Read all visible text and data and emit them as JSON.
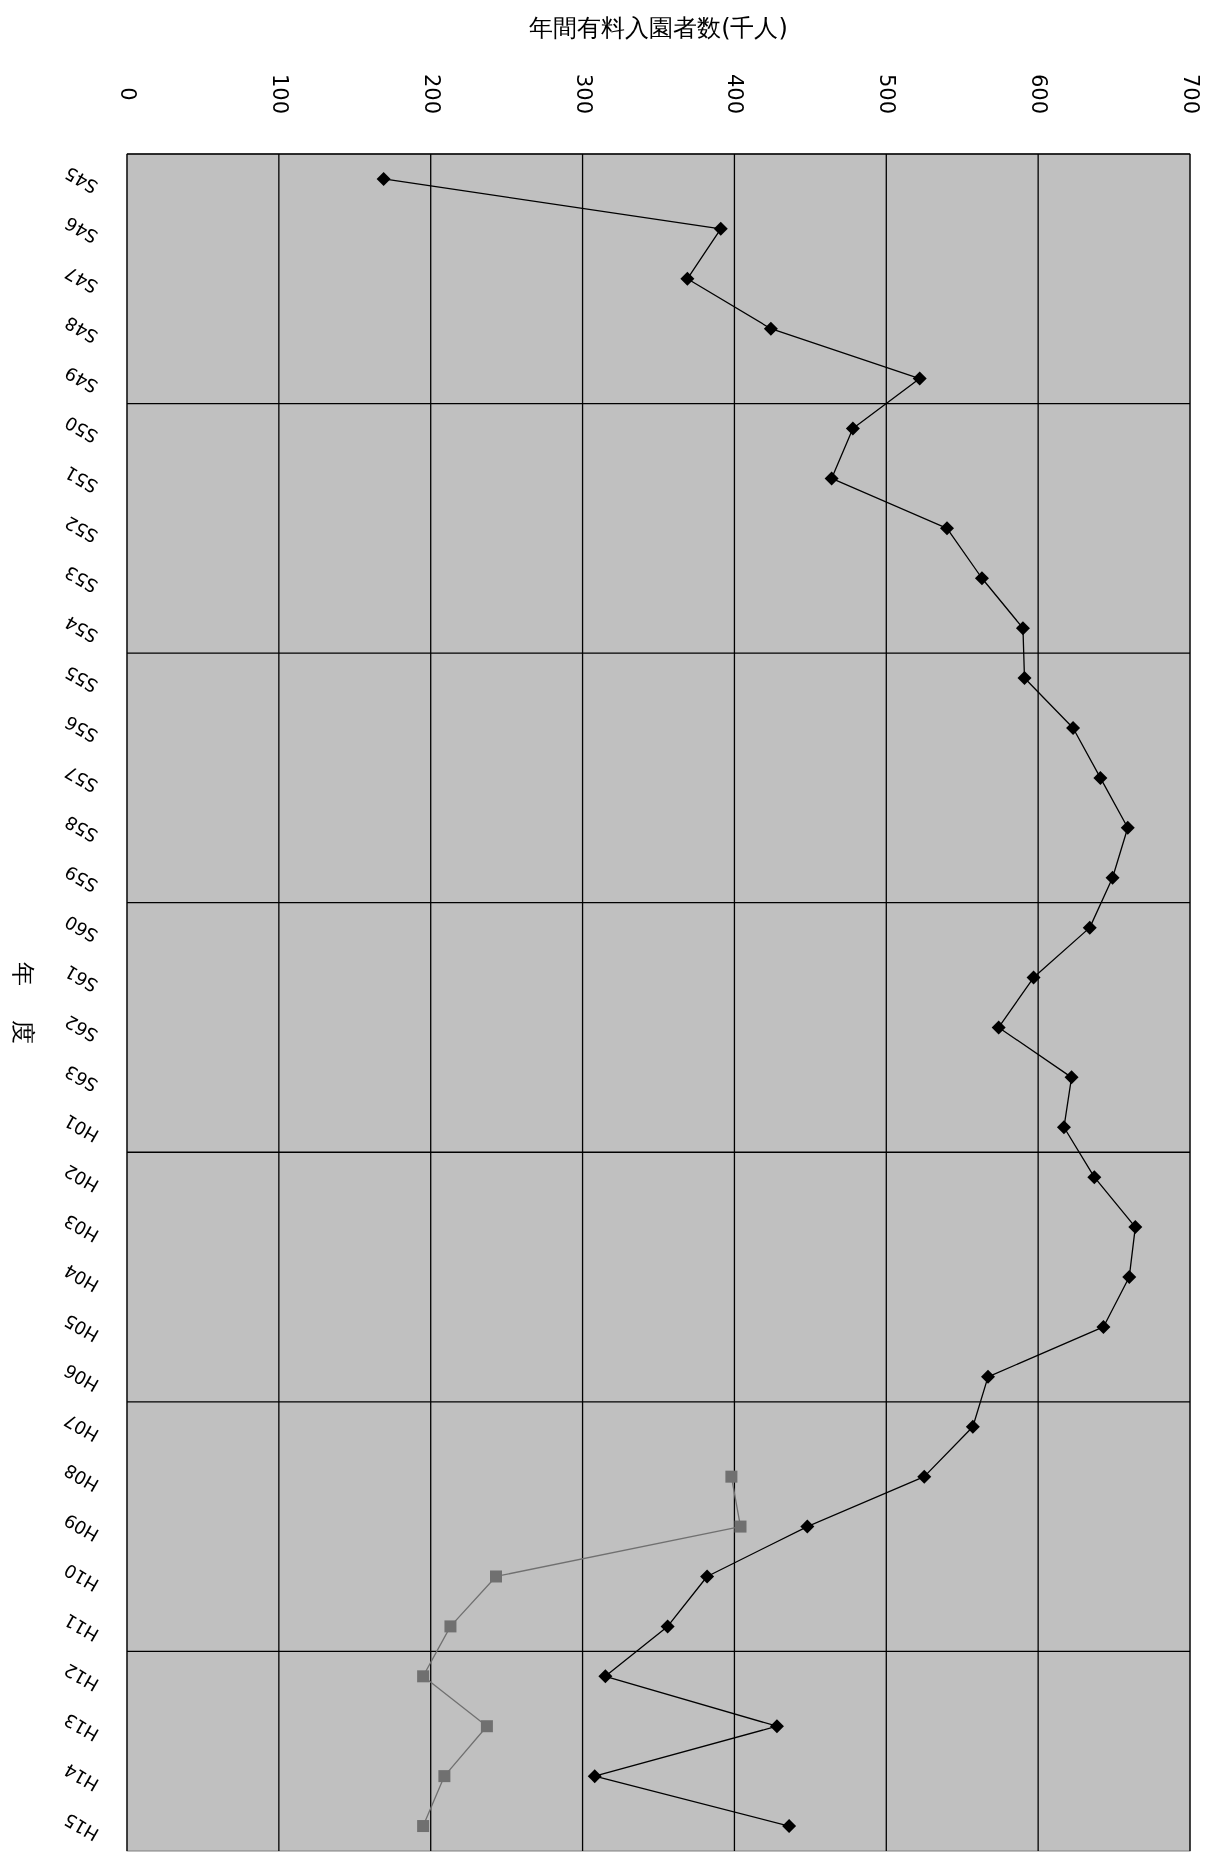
{
  "chart_data": {
    "type": "line",
    "orientation": "horizontal",
    "ylabel": "年度",
    "xlabel": "年間有料入園者数(千人)",
    "categories": [
      "S45",
      "S46",
      "S47",
      "S48",
      "S49",
      "S50",
      "S51",
      "S52",
      "S53",
      "S54",
      "S55",
      "S56",
      "S57",
      "S58",
      "S59",
      "S60",
      "S61",
      "S62",
      "S63",
      "H01",
      "H02",
      "H03",
      "H04",
      "H05",
      "H06",
      "H07",
      "H08",
      "H09",
      "H10",
      "H11",
      "H12",
      "H13",
      "H14",
      "H15"
    ],
    "series": [
      {
        "color": "#000000",
        "marker": "diamond",
        "values": [
          169,
          391,
          369,
          424,
          522,
          478,
          464,
          540,
          563,
          590,
          591,
          623,
          641,
          659,
          649,
          634,
          597,
          574,
          622,
          617,
          637,
          664,
          660,
          643,
          567,
          557,
          525,
          448,
          382,
          356,
          315,
          428,
          308,
          436
        ]
      },
      {
        "color": "#707070",
        "marker": "square",
        "values": [
          null,
          null,
          null,
          null,
          null,
          null,
          null,
          null,
          null,
          null,
          null,
          null,
          null,
          null,
          null,
          null,
          null,
          null,
          null,
          null,
          null,
          null,
          null,
          null,
          null,
          null,
          398,
          404,
          243,
          213,
          195,
          237,
          209,
          195
        ]
      }
    ],
    "xlim": [
      0,
      700
    ],
    "xticks": [
      0,
      100,
      200,
      300,
      400,
      500,
      600,
      700
    ],
    "grid": true
  }
}
